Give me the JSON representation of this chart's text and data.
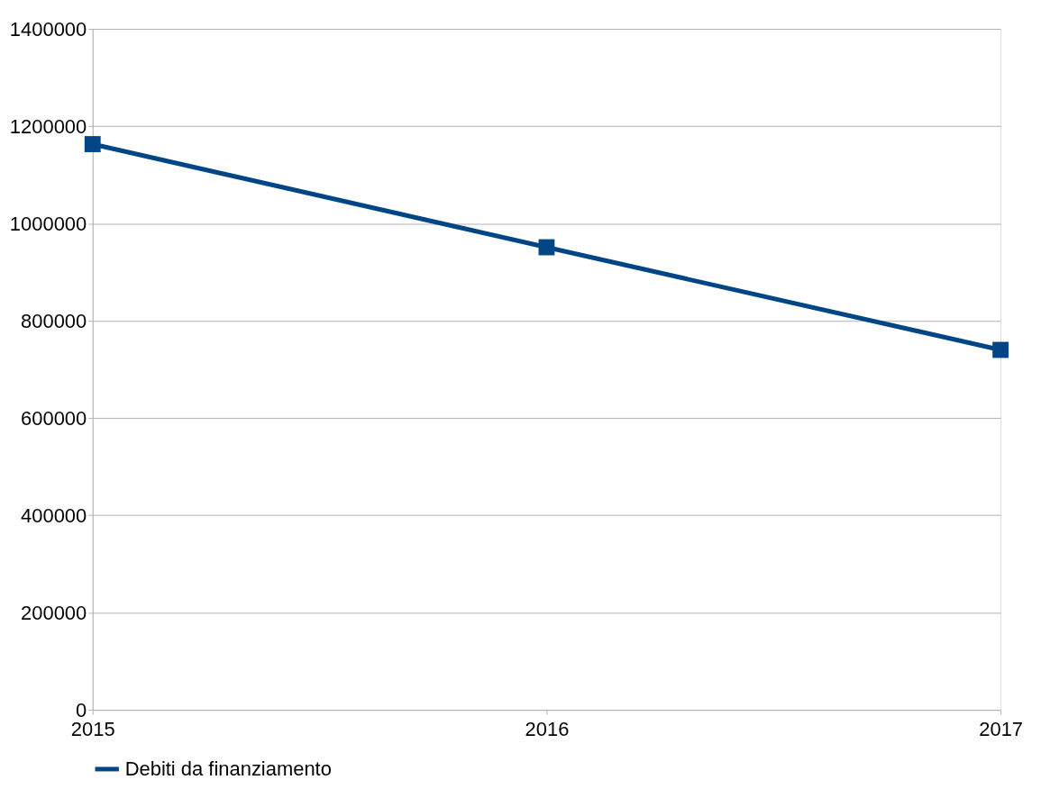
{
  "chart_data": {
    "type": "line",
    "categories": [
      "2015",
      "2016",
      "2017"
    ],
    "series": [
      {
        "name": "Debiti da finanziamento",
        "color": "#004586",
        "values": [
          1163000,
          951000,
          740000
        ]
      }
    ],
    "ylim": [
      0,
      1400000
    ],
    "yticks": [
      0,
      200000,
      400000,
      600000,
      800000,
      1000000,
      1200000,
      1400000
    ],
    "grid": "y",
    "legend": "bottom",
    "marker": "square",
    "line_style": "solid"
  }
}
